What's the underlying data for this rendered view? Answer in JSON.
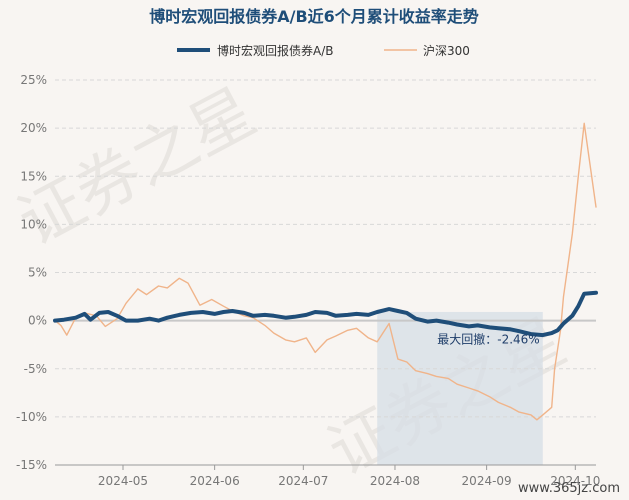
{
  "colors": {
    "title": "#1f4e79",
    "fund": "#1f4e79",
    "index": "#f0b48a",
    "drawdown_fill": "#d5dde6",
    "grid": "#d8d8d8",
    "zero_line": "#c8c8c8"
  },
  "watermark": {
    "texts": [
      "证券之星",
      "证券之星"
    ]
  },
  "footer": {
    "url": "www.365jz.com"
  },
  "chart_data": {
    "type": "line",
    "title": "博时宏观回报债券A/B近6个月累计收益率走势",
    "xlabel": "",
    "ylabel": "",
    "ylim": [
      -15,
      25
    ],
    "y_ticks": [
      25,
      20,
      15,
      10,
      5,
      0,
      -5,
      -10,
      -15
    ],
    "y_tick_labels": [
      "25%",
      "20%",
      "15%",
      "10%",
      "5%",
      "0%",
      "-5%",
      "-10%",
      "-15%"
    ],
    "x_ticks": [
      "2024-05-01",
      "2024-06-01",
      "2024-07-01",
      "2024-08-01",
      "2024-09-01",
      "2024-10-01"
    ],
    "x_tick_labels": [
      "2024-05",
      "2024-06",
      "2024-07",
      "2024-08",
      "2024-09",
      "2024-10"
    ],
    "xlim": [
      "2024-04-08",
      "2024-10-08"
    ],
    "grid": true,
    "legend_position": "top-center",
    "series": [
      {
        "name": "博时宏观回报债券A/B",
        "color": "#1f4e79",
        "points": [
          [
            "2024-04-08",
            0.0
          ],
          [
            "2024-04-11",
            0.1
          ],
          [
            "2024-04-15",
            0.3
          ],
          [
            "2024-04-18",
            0.7
          ],
          [
            "2024-04-20",
            0.1
          ],
          [
            "2024-04-23",
            0.8
          ],
          [
            "2024-04-26",
            0.9
          ],
          [
            "2024-04-29",
            0.5
          ],
          [
            "2024-05-02",
            0.0
          ],
          [
            "2024-05-06",
            0.0
          ],
          [
            "2024-05-10",
            0.2
          ],
          [
            "2024-05-13",
            0.0
          ],
          [
            "2024-05-16",
            0.3
          ],
          [
            "2024-05-20",
            0.6
          ],
          [
            "2024-05-24",
            0.8
          ],
          [
            "2024-05-28",
            0.9
          ],
          [
            "2024-06-01",
            0.7
          ],
          [
            "2024-06-04",
            0.9
          ],
          [
            "2024-06-07",
            1.0
          ],
          [
            "2024-06-11",
            0.8
          ],
          [
            "2024-06-14",
            0.5
          ],
          [
            "2024-06-18",
            0.6
          ],
          [
            "2024-06-21",
            0.5
          ],
          [
            "2024-06-25",
            0.3
          ],
          [
            "2024-06-28",
            0.4
          ],
          [
            "2024-07-02",
            0.6
          ],
          [
            "2024-07-05",
            0.9
          ],
          [
            "2024-07-09",
            0.8
          ],
          [
            "2024-07-12",
            0.5
          ],
          [
            "2024-07-16",
            0.6
          ],
          [
            "2024-07-19",
            0.7
          ],
          [
            "2024-07-23",
            0.6
          ],
          [
            "2024-07-26",
            0.9
          ],
          [
            "2024-07-30",
            1.2
          ],
          [
            "2024-08-02",
            1.0
          ],
          [
            "2024-08-05",
            0.8
          ],
          [
            "2024-08-08",
            0.2
          ],
          [
            "2024-08-12",
            -0.1
          ],
          [
            "2024-08-15",
            0.0
          ],
          [
            "2024-08-19",
            -0.2
          ],
          [
            "2024-08-22",
            -0.4
          ],
          [
            "2024-08-26",
            -0.6
          ],
          [
            "2024-08-29",
            -0.5
          ],
          [
            "2024-09-02",
            -0.7
          ],
          [
            "2024-09-05",
            -0.8
          ],
          [
            "2024-09-09",
            -0.9
          ],
          [
            "2024-09-12",
            -1.1
          ],
          [
            "2024-09-16",
            -1.4
          ],
          [
            "2024-09-20",
            -1.5
          ],
          [
            "2024-09-23",
            -1.3
          ],
          [
            "2024-09-25",
            -1.0
          ],
          [
            "2024-09-27",
            -0.3
          ],
          [
            "2024-09-30",
            0.5
          ],
          [
            "2024-10-02",
            1.5
          ],
          [
            "2024-10-04",
            2.8
          ],
          [
            "2024-10-08",
            2.9
          ]
        ]
      },
      {
        "name": "沪深300",
        "color": "#f0b48a",
        "points": [
          [
            "2024-04-08",
            0.0
          ],
          [
            "2024-04-10",
            -0.5
          ],
          [
            "2024-04-12",
            -1.5
          ],
          [
            "2024-04-15",
            0.3
          ],
          [
            "2024-04-18",
            0.8
          ],
          [
            "2024-04-22",
            0.5
          ],
          [
            "2024-04-25",
            -0.6
          ],
          [
            "2024-04-29",
            0.2
          ],
          [
            "2024-05-02",
            1.8
          ],
          [
            "2024-05-06",
            3.3
          ],
          [
            "2024-05-09",
            2.7
          ],
          [
            "2024-05-13",
            3.6
          ],
          [
            "2024-05-16",
            3.4
          ],
          [
            "2024-05-20",
            4.4
          ],
          [
            "2024-05-23",
            3.9
          ],
          [
            "2024-05-27",
            1.6
          ],
          [
            "2024-05-31",
            2.2
          ],
          [
            "2024-06-04",
            1.5
          ],
          [
            "2024-06-07",
            1.0
          ],
          [
            "2024-06-11",
            0.5
          ],
          [
            "2024-06-14",
            0.3
          ],
          [
            "2024-06-18",
            -0.5
          ],
          [
            "2024-06-21",
            -1.3
          ],
          [
            "2024-06-25",
            -2.0
          ],
          [
            "2024-06-28",
            -2.2
          ],
          [
            "2024-07-02",
            -1.8
          ],
          [
            "2024-07-05",
            -3.3
          ],
          [
            "2024-07-09",
            -2.0
          ],
          [
            "2024-07-12",
            -1.6
          ],
          [
            "2024-07-16",
            -1.0
          ],
          [
            "2024-07-19",
            -0.8
          ],
          [
            "2024-07-23",
            -1.8
          ],
          [
            "2024-07-26",
            -2.2
          ],
          [
            "2024-07-30",
            -0.3
          ],
          [
            "2024-08-02",
            -4.0
          ],
          [
            "2024-08-05",
            -4.3
          ],
          [
            "2024-08-08",
            -5.2
          ],
          [
            "2024-08-12",
            -5.5
          ],
          [
            "2024-08-15",
            -5.8
          ],
          [
            "2024-08-19",
            -6.0
          ],
          [
            "2024-08-22",
            -6.6
          ],
          [
            "2024-08-26",
            -7.0
          ],
          [
            "2024-08-29",
            -7.3
          ],
          [
            "2024-09-02",
            -7.9
          ],
          [
            "2024-09-05",
            -8.5
          ],
          [
            "2024-09-09",
            -9.0
          ],
          [
            "2024-09-12",
            -9.5
          ],
          [
            "2024-09-16",
            -9.8
          ],
          [
            "2024-09-18",
            -10.3
          ],
          [
            "2024-09-20",
            -9.8
          ],
          [
            "2024-09-23",
            -9.0
          ],
          [
            "2024-09-24",
            -5.0
          ],
          [
            "2024-09-26",
            -1.0
          ],
          [
            "2024-09-27",
            2.5
          ],
          [
            "2024-09-30",
            9.0
          ],
          [
            "2024-10-02",
            15.0
          ],
          [
            "2024-10-04",
            20.5
          ],
          [
            "2024-10-08",
            11.8
          ]
        ]
      }
    ],
    "drawdown": {
      "label": "最大回撤：-2.46%",
      "start": "2024-07-26",
      "end": "2024-09-20"
    }
  }
}
